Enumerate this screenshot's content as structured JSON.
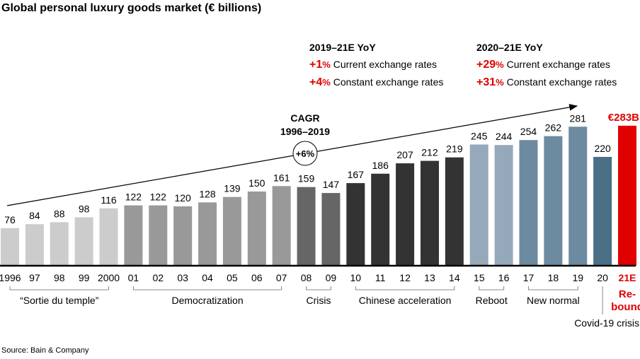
{
  "title": "Global personal luxury goods market (€ billions)",
  "source": "Source: Bain & Company",
  "annotations": {
    "left": {
      "heading": "2019–21E YoY",
      "rows": [
        {
          "value": "+1",
          "pct": "%",
          "label": "Current exchange rates"
        },
        {
          "value": "+4",
          "pct": "%",
          "label": "Constant exchange rates"
        }
      ]
    },
    "right": {
      "heading": "2020–21E YoY",
      "rows": [
        {
          "value": "+29",
          "pct": "%",
          "label": "Current exchange rates"
        },
        {
          "value": "+31",
          "pct": "%",
          "label": "Constant exchange rates"
        }
      ]
    },
    "cagr_label": "CAGR",
    "cagr_period": "1996–2019",
    "cagr_value": "+6%"
  },
  "chart_data": {
    "type": "bar",
    "title": "Global personal luxury goods market (€ billions)",
    "categories": [
      "1996",
      "97",
      "98",
      "99",
      "2000",
      "01",
      "02",
      "03",
      "04",
      "05",
      "06",
      "07",
      "08",
      "09",
      "10",
      "11",
      "12",
      "13",
      "14",
      "15",
      "16",
      "17",
      "18",
      "19",
      "20",
      "21E"
    ],
    "values": [
      76,
      84,
      88,
      98,
      116,
      122,
      122,
      120,
      128,
      139,
      150,
      161,
      159,
      147,
      167,
      186,
      207,
      212,
      219,
      245,
      244,
      254,
      262,
      281,
      220,
      283
    ],
    "data_labels": [
      "76",
      "84",
      "88",
      "98",
      "116",
      "122",
      "122",
      "120",
      "128",
      "139",
      "150",
      "161",
      "159",
      "147",
      "167",
      "186",
      "207",
      "212",
      "219",
      "245",
      "244",
      "254",
      "262",
      "281",
      "220",
      "€283B"
    ],
    "ylim": [
      0,
      300
    ],
    "grid": false,
    "groups": [
      {
        "label": "“Sortie du temple”",
        "from": 0,
        "to": 4,
        "color": "#cccccc"
      },
      {
        "label": "Democratization",
        "from": 5,
        "to": 11,
        "color": "#999999"
      },
      {
        "label": "Crisis",
        "from": 12,
        "to": 13,
        "color": "#666666"
      },
      {
        "label": "Chinese acceleration",
        "from": 14,
        "to": 18,
        "color": "#333333"
      },
      {
        "label": "Reboot",
        "from": 19,
        "to": 20,
        "color": "#95a9bb"
      },
      {
        "label": "New normal",
        "from": 21,
        "to": 23,
        "color": "#6d8ba0"
      },
      {
        "label": "Covid-19 crisis",
        "from": 24,
        "to": 24,
        "color": "#4a6f87"
      },
      {
        "label": "Re-\nbound",
        "from": 25,
        "to": 25,
        "color": "#e00000"
      }
    ]
  }
}
